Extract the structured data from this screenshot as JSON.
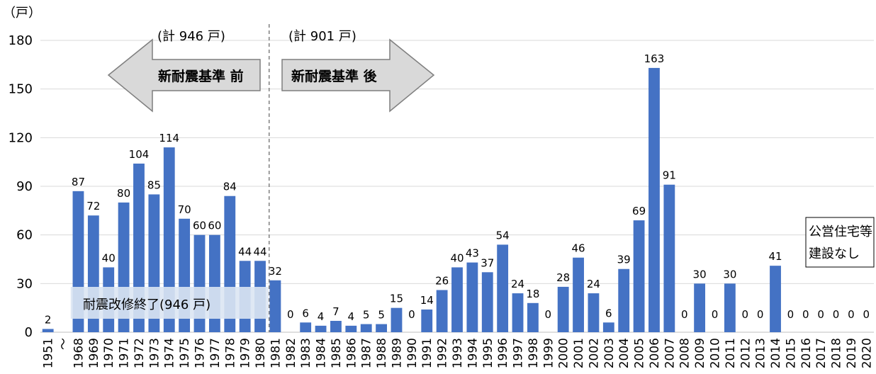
{
  "chart_data": {
    "type": "bar",
    "unit_label": "（戸）",
    "ylim": [
      0,
      180
    ],
    "yticks": [
      0,
      30,
      60,
      90,
      120,
      150,
      180
    ],
    "grid": true,
    "bar_color": "#4472C4",
    "categories": [
      "1951",
      "〜",
      "1968",
      "1969",
      "1970",
      "1971",
      "1972",
      "1973",
      "1974",
      "1975",
      "1976",
      "1977",
      "1978",
      "1979",
      "1980",
      "1981",
      "1982",
      "1983",
      "1984",
      "1985",
      "1986",
      "1987",
      "1988",
      "1989",
      "1990",
      "1991",
      "1992",
      "1993",
      "1994",
      "1995",
      "1996",
      "1997",
      "1998",
      "1999",
      "2000",
      "2001",
      "2002",
      "2003",
      "2004",
      "2005",
      "2006",
      "2007",
      "2008",
      "2009",
      "2010",
      "2011",
      "2012",
      "2013",
      "2014",
      "2015",
      "2016",
      "2017",
      "2018",
      "2019",
      "2020"
    ],
    "values": [
      2,
      null,
      87,
      72,
      40,
      80,
      104,
      85,
      114,
      70,
      60,
      60,
      84,
      44,
      44,
      32,
      0,
      6,
      4,
      7,
      4,
      5,
      5,
      15,
      0,
      14,
      26,
      40,
      43,
      37,
      54,
      24,
      18,
      0,
      28,
      46,
      24,
      6,
      39,
      69,
      163,
      91,
      0,
      30,
      0,
      30,
      0,
      0,
      41,
      0,
      0,
      0,
      0,
      0,
      0
    ]
  },
  "annotations": {
    "before_total": "(計 946 戸)",
    "after_total": "(計 901 戸)",
    "before_label": "新耐震基準 前",
    "after_label": "新耐震基準 後",
    "retrofit_label": "耐震改修終了(946 戸)",
    "no_public_housing_line1": "公営住宅等",
    "no_public_housing_line2": "建設なし"
  }
}
